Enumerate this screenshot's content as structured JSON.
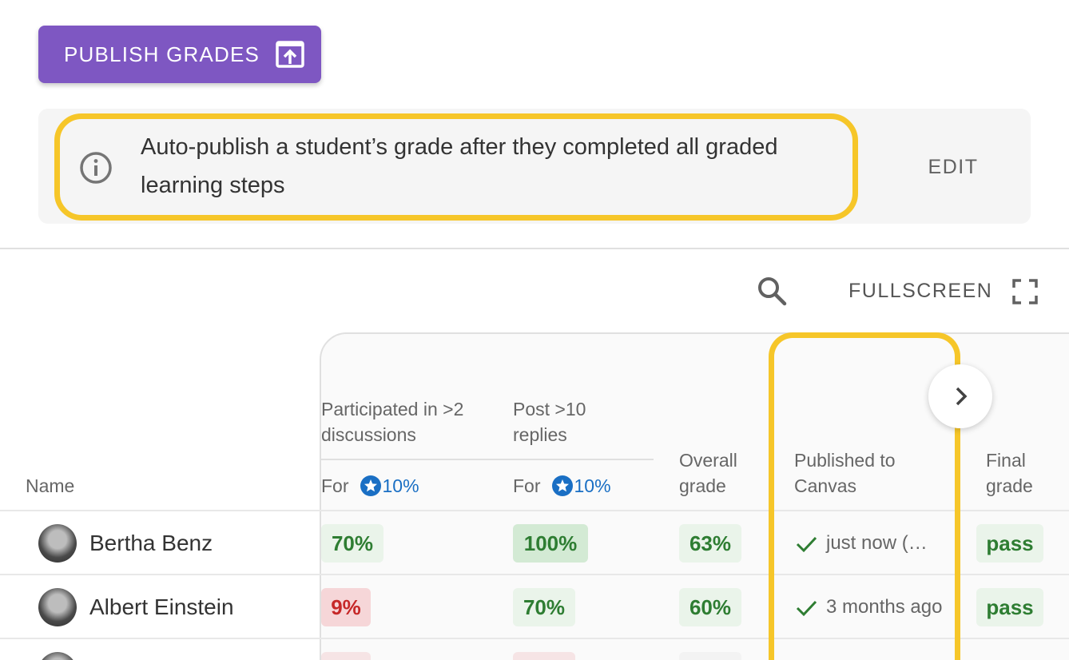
{
  "toolbar": {
    "publish_label": "PUBLISH GRADES",
    "search_icon": "search-icon",
    "fullscreen_label": "FULLSCREEN"
  },
  "banner": {
    "text": "Auto-publish a student’s grade after they completed all graded learning steps",
    "edit_label": "EDIT",
    "icon": "info-icon"
  },
  "table": {
    "columns": {
      "name": "Name",
      "participated": "Participated in >2 discussions",
      "posts": "Post >10 replies",
      "overall": "Overall grade",
      "published": "Published to Canvas",
      "final": "Final grade"
    },
    "weights": {
      "participated": {
        "prefix": "For",
        "pct": "10%"
      },
      "posts": {
        "prefix": "For",
        "pct": "10%"
      }
    },
    "rows": [
      {
        "name": "Bertha Benz",
        "participated": "70%",
        "posts": "100%",
        "overall": "63%",
        "published": "just now (…",
        "final": "pass"
      },
      {
        "name": "Albert Einstein",
        "participated": "9%",
        "posts": "70%",
        "overall": "60%",
        "published": "3 months ago",
        "final": "pass"
      }
    ]
  },
  "colors": {
    "accent": "#7e57c2",
    "highlight": "#f6c629",
    "pass": "#2e7d32",
    "fail": "#c62828",
    "weight": "#1a6fc4"
  }
}
